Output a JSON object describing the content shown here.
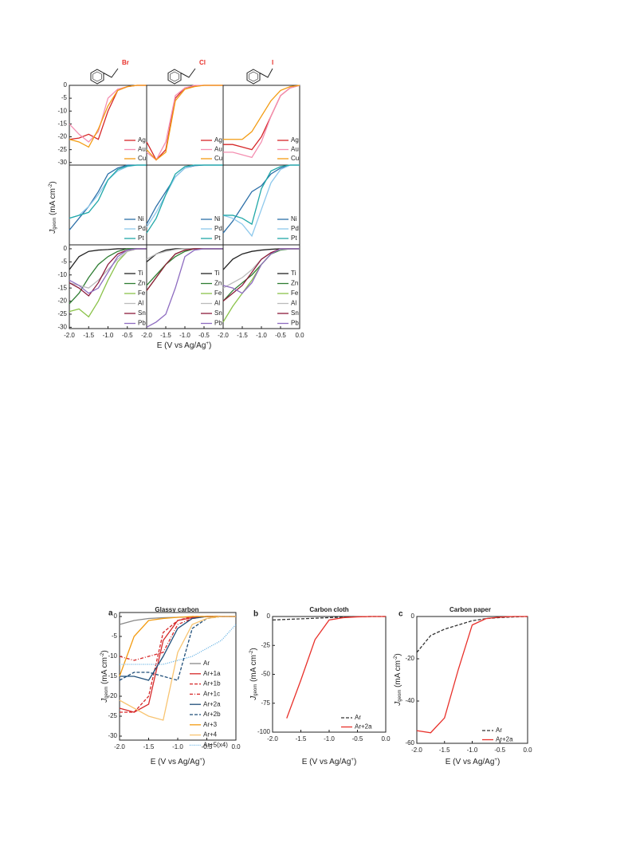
{
  "figure_1": {
    "y_label": [
      "J",
      "geom",
      " (mA cm",
      "-2",
      ")"
    ],
    "x_label": [
      "E (V vs Ag/Ag",
      "+",
      ")"
    ]
  },
  "chart_data": [
    {
      "type": "line",
      "halogen": "Br",
      "x": [
        -2,
        -1.75,
        -1.5,
        -1.25,
        -1,
        -0.75,
        -0.5,
        -0.25,
        0
      ],
      "xlim": [
        -2,
        0
      ],
      "ylim": [
        -31,
        0
      ],
      "yticks": [
        0,
        -5,
        -10,
        -15,
        -20,
        -25,
        -30
      ],
      "series": [
        {
          "name": "Ag",
          "color": "#d62728",
          "values": [
            -21,
            -20.5,
            -19,
            -21,
            -10,
            -2,
            -0.5,
            0,
            0
          ]
        },
        {
          "name": "Au",
          "color": "#f48fb1",
          "values": [
            -15,
            -19,
            -22,
            -18,
            -5,
            -1.5,
            -0.5,
            0,
            0
          ]
        },
        {
          "name": "Cu",
          "color": "#f39c12",
          "values": [
            -21,
            -22,
            -24,
            -17,
            -8,
            -2,
            -0.5,
            0,
            0
          ]
        }
      ]
    },
    {
      "type": "line",
      "halogen": "Cl",
      "x": [
        -2,
        -1.75,
        -1.5,
        -1.25,
        -1,
        -0.75,
        -0.5,
        -0.25,
        0
      ],
      "xlim": [
        -2,
        0
      ],
      "ylim": [
        -31,
        0
      ],
      "series": [
        {
          "name": "Ag",
          "color": "#d62728",
          "values": [
            -22,
            -29,
            -25,
            -5,
            -1,
            -0.3,
            0,
            0,
            0
          ]
        },
        {
          "name": "Au",
          "color": "#f48fb1",
          "values": [
            -26,
            -29,
            -22,
            -4,
            -1,
            0,
            0,
            0,
            0
          ]
        },
        {
          "name": "Cu",
          "color": "#f39c12",
          "values": [
            -25,
            -29,
            -26,
            -6,
            -1.5,
            -0.5,
            0,
            0,
            0
          ]
        }
      ]
    },
    {
      "type": "line",
      "halogen": "I",
      "x": [
        -2,
        -1.75,
        -1.5,
        -1.25,
        -1,
        -0.75,
        -0.5,
        -0.25,
        0
      ],
      "xlim": [
        -2,
        0
      ],
      "ylim": [
        -31,
        0
      ],
      "series": [
        {
          "name": "Ag",
          "color": "#d62728",
          "values": [
            -23,
            -23,
            -24,
            -25,
            -20,
            -12,
            -4,
            -1,
            0
          ]
        },
        {
          "name": "Au",
          "color": "#f48fb1",
          "values": [
            -26,
            -26,
            -27,
            -28,
            -22,
            -12,
            -4,
            -1,
            0
          ]
        },
        {
          "name": "Cu",
          "color": "#f39c12",
          "values": [
            -21,
            -21,
            -21,
            -18,
            -12,
            -6,
            -2,
            -0.5,
            0
          ]
        }
      ]
    },
    {
      "type": "line",
      "x": [
        -2,
        -1.75,
        -1.5,
        -1.25,
        -1,
        -0.75,
        -0.5,
        -0.25,
        0
      ],
      "xlim": [
        -2,
        0
      ],
      "ylim": [
        -27,
        0
      ],
      "series": [
        {
          "name": "Ni",
          "color": "#2c6fa8",
          "values": [
            -22,
            -18,
            -14,
            -9,
            -3,
            -1,
            0,
            0,
            0
          ]
        },
        {
          "name": "Pd",
          "color": "#8ec9ec",
          "values": [
            -18,
            -17,
            -14,
            -10,
            -5,
            -2,
            -0.5,
            0,
            0
          ]
        },
        {
          "name": "Pt",
          "color": "#20a8a8",
          "values": [
            -18,
            -17,
            -16,
            -12,
            -5,
            -1.5,
            -0.3,
            0,
            0
          ]
        }
      ]
    },
    {
      "type": "line",
      "x": [
        -2,
        -1.75,
        -1.5,
        -1.25,
        -1,
        -0.75,
        -0.5,
        -0.25,
        0
      ],
      "xlim": [
        -2,
        0
      ],
      "ylim": [
        -27,
        0
      ],
      "series": [
        {
          "name": "Ni",
          "color": "#2c6fa8",
          "values": [
            -20,
            -14,
            -9,
            -4,
            -1,
            -0.2,
            0,
            0,
            0
          ]
        },
        {
          "name": "Pd",
          "color": "#8ec9ec",
          "values": [
            -21,
            -16,
            -10,
            -4,
            -1,
            0,
            0,
            0,
            0
          ]
        },
        {
          "name": "Pt",
          "color": "#20a8a8",
          "values": [
            -23,
            -18,
            -10,
            -3,
            -0.5,
            0,
            0,
            0,
            0
          ]
        }
      ]
    },
    {
      "type": "line",
      "x": [
        -2,
        -1.75,
        -1.5,
        -1.25,
        -1,
        -0.75,
        -0.5,
        -0.25,
        0
      ],
      "xlim": [
        -2,
        0
      ],
      "ylim": [
        -27,
        0
      ],
      "series": [
        {
          "name": "Ni",
          "color": "#2c6fa8",
          "values": [
            -23,
            -19,
            -14,
            -9,
            -7,
            -3,
            -1,
            0,
            0
          ]
        },
        {
          "name": "Pd",
          "color": "#8ec9ec",
          "values": [
            -17,
            -18,
            -20,
            -24,
            -15,
            -6,
            -1.5,
            0,
            0
          ]
        },
        {
          "name": "Pt",
          "color": "#20a8a8",
          "values": [
            -17,
            -17,
            -18,
            -20,
            -8,
            -2,
            -0.5,
            0,
            0
          ]
        }
      ]
    },
    {
      "type": "line",
      "x": [
        -2,
        -1.75,
        -1.5,
        -1.25,
        -1,
        -0.75,
        -0.5,
        -0.25,
        0
      ],
      "xlim": [
        -2,
        0
      ],
      "ylim": [
        -30.5,
        1.5
      ],
      "yticks": [
        0,
        -5,
        -10,
        -15,
        -20,
        -25,
        -30
      ],
      "xticks": [
        {
          "value": -2,
          "label": "-2.0"
        },
        -1.5,
        {
          "value": -1,
          "label": "-1.0"
        },
        -0.5
      ],
      "series": [
        {
          "name": "Ti",
          "color": "#222222",
          "values": [
            -8,
            -3,
            -1,
            -0.5,
            -0.3,
            0,
            0,
            0,
            0
          ]
        },
        {
          "name": "Zn",
          "color": "#2e7d32",
          "values": [
            -21,
            -17,
            -11,
            -6,
            -3,
            -1,
            0,
            0,
            0
          ]
        },
        {
          "name": "Fe",
          "color": "#8bc34a",
          "values": [
            -24,
            -23,
            -26,
            -20,
            -12,
            -5,
            -1,
            0,
            0
          ]
        },
        {
          "name": "Al",
          "color": "#bbbbbb",
          "values": [
            -13,
            -14,
            -15,
            -12,
            -8,
            -4,
            -1,
            0,
            0
          ]
        },
        {
          "name": "Sn",
          "color": "#8b1a3a",
          "values": [
            -13,
            -15,
            -18,
            -13,
            -6,
            -2,
            -0.5,
            0,
            0
          ]
        },
        {
          "name": "Pb",
          "color": "#8e6cc0",
          "values": [
            -12,
            -14,
            -17,
            -15,
            -9,
            -3,
            -0.5,
            0,
            0
          ]
        }
      ]
    },
    {
      "type": "line",
      "x": [
        -2,
        -1.75,
        -1.5,
        -1.25,
        -1,
        -0.75,
        -0.5,
        -0.25,
        0
      ],
      "xlim": [
        -2,
        0
      ],
      "ylim": [
        -30.5,
        1.5
      ],
      "xticks": [
        {
          "value": -2,
          "label": "-2.0"
        },
        -1.5,
        {
          "value": -1,
          "label": "-1.0"
        },
        -0.5
      ],
      "series": [
        {
          "name": "Ti",
          "color": "#222222",
          "values": [
            -5,
            -2,
            -0.5,
            0,
            0,
            0,
            0,
            0,
            0
          ]
        },
        {
          "name": "Zn",
          "color": "#2e7d32",
          "values": [
            -14,
            -10,
            -6,
            -3,
            -1,
            0,
            0,
            0,
            0
          ]
        },
        {
          "name": "Fe",
          "color": "#8bc34a",
          "values": [
            -16,
            -11,
            -6,
            -2,
            -0.5,
            0,
            0,
            0,
            0
          ]
        },
        {
          "name": "Al",
          "color": "#bbbbbb",
          "values": [
            -4,
            -2,
            -1,
            -0.3,
            0,
            0,
            0,
            0,
            0
          ]
        },
        {
          "name": "Sn",
          "color": "#8b1a3a",
          "values": [
            -16,
            -11,
            -6,
            -2,
            -0.5,
            0,
            0,
            0,
            0
          ]
        },
        {
          "name": "Pb",
          "color": "#8e6cc0",
          "values": [
            -30,
            -28,
            -25,
            -15,
            -3,
            -0.5,
            0,
            0,
            0
          ]
        }
      ]
    },
    {
      "type": "line",
      "x": [
        -2,
        -1.75,
        -1.5,
        -1.25,
        -1,
        -0.75,
        -0.5,
        -0.25,
        0
      ],
      "xlim": [
        -2,
        0
      ],
      "ylim": [
        -30.5,
        1.5
      ],
      "xticks": [
        {
          "value": -2,
          "label": "-2.0"
        },
        -1.5,
        {
          "value": -1,
          "label": "-1.0"
        },
        -0.5,
        {
          "value": 0,
          "label": "0.0"
        }
      ],
      "series": [
        {
          "name": "Ti",
          "color": "#222222",
          "values": [
            -8,
            -4,
            -2,
            -1,
            -0.5,
            -0.2,
            0,
            0,
            0
          ]
        },
        {
          "name": "Zn",
          "color": "#2e7d32",
          "values": [
            -20,
            -16,
            -13,
            -10,
            -6,
            -2,
            -0.5,
            0,
            0
          ]
        },
        {
          "name": "Fe",
          "color": "#8bc34a",
          "values": [
            -28,
            -22,
            -17,
            -12,
            -6,
            -2,
            0,
            0,
            0
          ]
        },
        {
          "name": "Al",
          "color": "#bbbbbb",
          "values": [
            -15,
            -13,
            -11,
            -8,
            -4,
            -1.5,
            -0.3,
            0,
            0
          ]
        },
        {
          "name": "Sn",
          "color": "#8b1a3a",
          "values": [
            -20,
            -17,
            -14,
            -9,
            -4,
            -1.5,
            0,
            0,
            0
          ]
        },
        {
          "name": "Pb",
          "color": "#8e6cc0",
          "values": [
            -14,
            -15,
            -17,
            -13,
            -6,
            -2,
            0,
            0,
            0
          ]
        }
      ]
    },
    {
      "type": "line",
      "label": "a",
      "title": "Glassy carbon",
      "y_label": [
        "J",
        "geom",
        " (mA cm",
        "-2",
        ")"
      ],
      "x_label": [
        "E (V vs Ag/Ag",
        "+",
        ")"
      ],
      "x": [
        -2,
        -1.75,
        -1.5,
        -1.25,
        -1,
        -0.75,
        -0.5,
        -0.25,
        0
      ],
      "xlim": [
        -2,
        0
      ],
      "ylim": [
        -31,
        1
      ],
      "xticks": [
        {
          "value": -2,
          "label": "-2.0"
        },
        -1.5,
        {
          "value": -1,
          "label": "-1.0"
        },
        -0.5,
        {
          "value": 0,
          "label": "0.0"
        }
      ],
      "yticks": [
        0,
        -5,
        -10,
        -15,
        -20,
        -25,
        -30
      ],
      "series": [
        {
          "name": "Ar",
          "color": "#888888",
          "values": [
            -2,
            -1,
            -0.5,
            -0.3,
            -0.2,
            -0.1,
            0,
            0,
            0
          ]
        },
        {
          "name": "Ar+1a",
          "color": "#d62728",
          "values": [
            -23,
            -24,
            -22,
            -6,
            -1,
            -0.3,
            0,
            0,
            0
          ]
        },
        {
          "name": "Ar+1b",
          "color": "#d62728",
          "dash": "dashed",
          "values": [
            -24,
            -24,
            -20,
            -4,
            -1,
            0,
            0,
            0,
            0
          ]
        },
        {
          "name": "Ar+1c",
          "color": "#d62728",
          "dash": "dashdot",
          "values": [
            -10,
            -11,
            -10,
            -9,
            -2,
            -0.5,
            0,
            0,
            0
          ]
        },
        {
          "name": "Ar+2a",
          "color": "#1f4e79",
          "values": [
            -15,
            -15,
            -16,
            -10,
            -3,
            -0.5,
            0,
            0,
            0
          ]
        },
        {
          "name": "Ar+2b",
          "color": "#1f4e79",
          "dash": "dashed",
          "values": [
            -16,
            -14,
            -14,
            -15,
            -16,
            -3,
            -0.5,
            0,
            0
          ]
        },
        {
          "name": "Ar+3",
          "color": "#f39c12",
          "values": [
            -15,
            -5,
            -1,
            -0.5,
            -0.2,
            0,
            0,
            0,
            0
          ]
        },
        {
          "name": "Ar+4",
          "color": "#f8c471",
          "values": [
            -21,
            -23,
            -25,
            -26,
            -9,
            -2,
            -0.5,
            0,
            0
          ]
        },
        {
          "name": "Ar+5(x4)",
          "color": "#5dade2",
          "dash": "dotted",
          "values": [
            -12,
            -12,
            -12,
            -12,
            -11,
            -10,
            -8,
            -6,
            -2
          ]
        }
      ]
    },
    {
      "type": "line",
      "label": "b",
      "title": "Carbon cloth",
      "y_label": [
        "J",
        "geom",
        " (mA cm",
        "-2",
        ")"
      ],
      "x_label": [
        "E (V vs Ag/Ag",
        "+",
        ")"
      ],
      "x": [
        -2,
        -1.75,
        -1.5,
        -1.25,
        -1,
        -0.75,
        -0.5,
        -0.25,
        0
      ],
      "xlim": [
        -2,
        0
      ],
      "ylim": [
        -100,
        0
      ],
      "xticks": [
        {
          "value": -2,
          "label": "-2.0"
        },
        -1.5,
        {
          "value": -1,
          "label": "-1.0"
        },
        -0.5,
        {
          "value": 0,
          "label": "0.0"
        }
      ],
      "yticks": [
        0,
        -25,
        -50,
        -75,
        -100
      ],
      "series": [
        {
          "name": "Ar",
          "color": "#333333",
          "dash": "dashed",
          "values": [
            -3,
            -2.5,
            -2,
            -1.5,
            -1,
            -0.5,
            -0.2,
            0,
            0
          ]
        },
        {
          "name": "Ar+2a",
          "color": "#e8302a",
          "values": [
            null,
            -88,
            -55,
            -20,
            -3,
            -1,
            -0.3,
            0,
            0
          ]
        }
      ]
    },
    {
      "type": "line",
      "label": "c",
      "title": "Carbon paper",
      "y_label": [
        "J",
        "geom",
        " (mA cm",
        "-2",
        ")"
      ],
      "x_label": [
        "E (V vs Ag/Ag",
        "+",
        ")"
      ],
      "x": [
        -2,
        -1.75,
        -1.5,
        -1.25,
        -1,
        -0.75,
        -0.5,
        -0.25,
        0
      ],
      "xlim": [
        -2,
        0
      ],
      "ylim": [
        -60,
        0
      ],
      "xticks": [
        {
          "value": -2,
          "label": "-2.0"
        },
        -1.5,
        {
          "value": -1,
          "label": "-1.0"
        },
        -0.5,
        {
          "value": 0,
          "label": "0.0"
        }
      ],
      "yticks": [
        0,
        -20,
        -40,
        -60
      ],
      "series": [
        {
          "name": "Ar",
          "color": "#333333",
          "dash": "dashed",
          "values": [
            -17,
            -9,
            -6,
            -4,
            -2,
            -1,
            -0.5,
            -0.2,
            0
          ]
        },
        {
          "name": "Ar+2a",
          "color": "#e8302a",
          "values": [
            -54,
            -55,
            -48,
            -25,
            -4,
            -1,
            -0.3,
            0,
            0
          ]
        }
      ]
    }
  ]
}
